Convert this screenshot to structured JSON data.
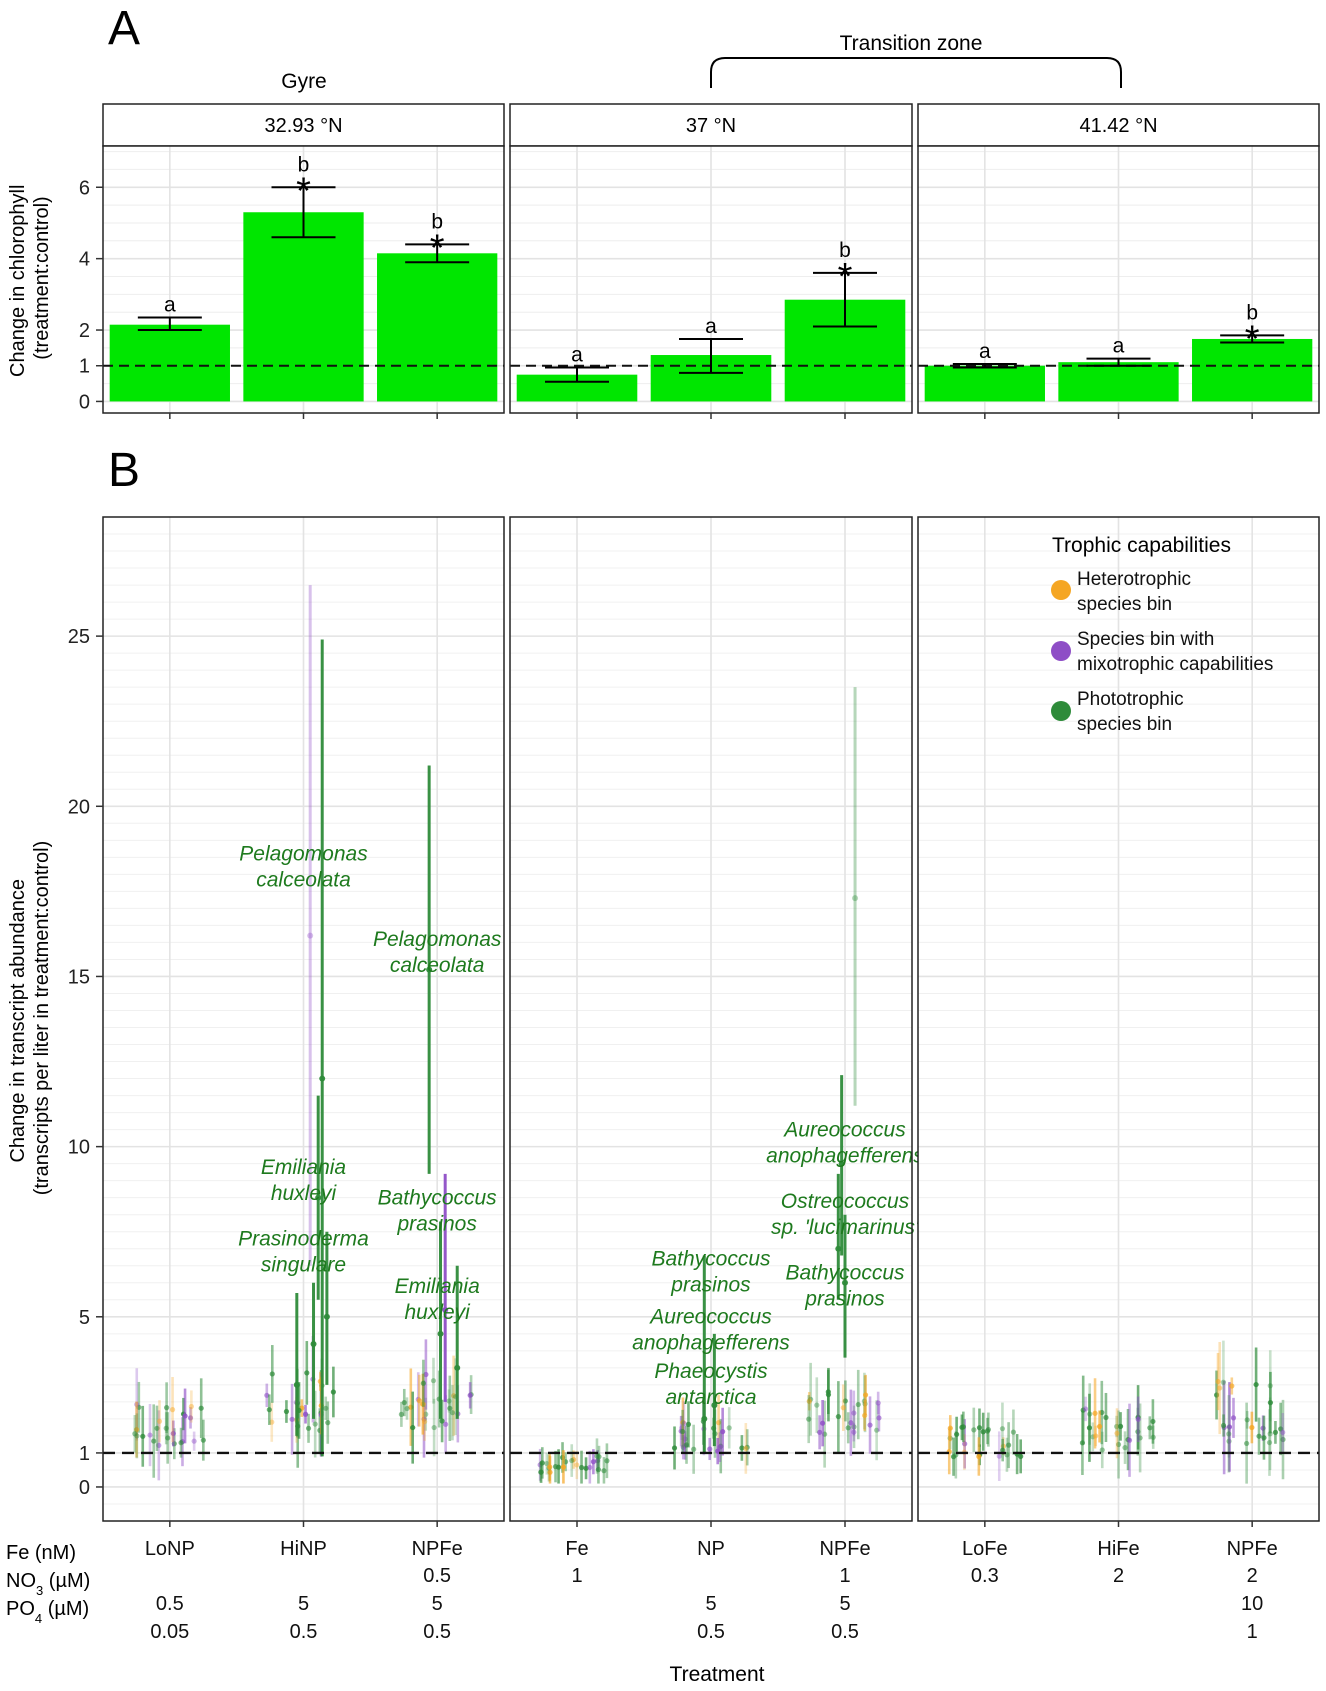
{
  "panel_a_letter": "A",
  "panel_b_letter": "B",
  "gyre_label": "Gyre",
  "transition_label": "Transition zone",
  "x_axis_title": "Treatment",
  "row_labels": {
    "fe": "Fe (nM)",
    "no3": "NO3 (µM)",
    "po4": "PO4 (µM)"
  },
  "legend": {
    "title": "Trophic capabilities",
    "items": [
      {
        "line1": "Heterotrophic",
        "line2": "species bin",
        "color": "#f5a623"
      },
      {
        "line1": "Species bin with",
        "line2": "mixotrophic capabilities",
        "color": "#8e4ec6"
      },
      {
        "line1": "Phototrophic",
        "line2": "species bin",
        "color": "#2e8b3a"
      }
    ]
  },
  "chart_data": [
    {
      "type": "bar",
      "title": "A",
      "ylabel": "Change in chlorophyll (treatment:control)",
      "ylim": [
        -0.1,
        7.1
      ],
      "yticks": [
        0,
        1,
        2,
        4,
        6
      ],
      "reference_line": 1,
      "bar_color": "#00e600",
      "facets": [
        {
          "strip": "32.93 °N",
          "categories": [
            "LoNP",
            "HiNP",
            "NPFe"
          ],
          "values": [
            2.15,
            5.3,
            4.15
          ],
          "err_low": [
            2.0,
            4.6,
            3.9
          ],
          "err_high": [
            2.35,
            6.0,
            4.4
          ],
          "letters": [
            "a",
            "b",
            "b"
          ],
          "significant": [
            false,
            true,
            true
          ]
        },
        {
          "strip": "37 °N",
          "categories": [
            "Fe",
            "NP",
            "NPFe"
          ],
          "values": [
            0.75,
            1.3,
            2.85
          ],
          "err_low": [
            0.55,
            0.8,
            2.1
          ],
          "err_high": [
            0.95,
            1.75,
            3.6
          ],
          "letters": [
            "a",
            "a",
            "b"
          ],
          "significant": [
            false,
            false,
            true
          ]
        },
        {
          "strip": "41.42 °N",
          "categories": [
            "LoFe",
            "HiFe",
            "NPFe"
          ],
          "values": [
            1.0,
            1.1,
            1.75
          ],
          "err_low": [
            0.95,
            1.0,
            1.65
          ],
          "err_high": [
            1.05,
            1.2,
            1.85
          ],
          "letters": [
            "a",
            "a",
            "b"
          ],
          "significant": [
            false,
            false,
            true
          ]
        }
      ]
    },
    {
      "type": "scatter",
      "title": "B",
      "ylabel": "Change in transcript abundance (transcripts per liter in treatment:control)",
      "xlabel": "Treatment",
      "ylim": [
        -1,
        28.5
      ],
      "yticks": [
        0,
        1,
        5,
        10,
        15,
        20,
        25
      ],
      "reference_line": 1,
      "facets": [
        {
          "strip": "32.93 °N",
          "categories": [
            "LoNP",
            "HiNP",
            "NPFe"
          ],
          "treatments": {
            "fe": [
              "",
              "",
              "0.5"
            ],
            "no3": [
              "0.5",
              "5",
              "5"
            ],
            "po4": [
              "0.05",
              "0.5",
              "0.5"
            ]
          },
          "highlights": [
            {
              "group": "HiNP",
              "offset": 0.1,
              "y": 16.2,
              "low": 6.5,
              "high": 26.5,
              "trophic": "mixotrophic"
            },
            {
              "group": "HiNP",
              "offset": 0.28,
              "y": 12.0,
              "low": 0.9,
              "high": 24.9,
              "trophic": "phototrophic"
            },
            {
              "group": "HiNP",
              "offset": 0.22,
              "y": 8.5,
              "low": 5.5,
              "high": 11.5,
              "trophic": "phototrophic"
            },
            {
              "group": "HiNP",
              "offset": 0.15,
              "y": 4.2,
              "low": 2.0,
              "high": 6.0,
              "trophic": "phototrophic"
            },
            {
              "group": "HiNP",
              "offset": 0.35,
              "y": 5.0,
              "low": 3.0,
              "high": 7.5,
              "trophic": "phototrophic"
            },
            {
              "group": "HiNP",
              "offset": -0.1,
              "y": 3.0,
              "low": 1.5,
              "high": 5.7,
              "trophic": "phototrophic"
            },
            {
              "group": "NPFe",
              "offset": -0.12,
              "y": 15.2,
              "low": 9.2,
              "high": 21.2,
              "trophic": "phototrophic"
            },
            {
              "group": "NPFe",
              "offset": 0.12,
              "y": 5.2,
              "low": 2.5,
              "high": 9.2,
              "trophic": "mixotrophic"
            },
            {
              "group": "NPFe",
              "offset": 0.05,
              "y": 4.5,
              "low": 2.0,
              "high": 7.8,
              "trophic": "phototrophic"
            },
            {
              "group": "NPFe",
              "offset": 0.3,
              "y": 3.5,
              "low": 2.0,
              "high": 6.5,
              "trophic": "phototrophic"
            }
          ],
          "species_labels": [
            {
              "line1": "Pelagomonas",
              "line2": "calceolata",
              "group": "HiNP",
              "y_top": 18.4
            },
            {
              "line1": "Pelagomonas",
              "line2": "calceolata",
              "group": "NPFe",
              "y_top": 15.9
            },
            {
              "line1": "Emiliania",
              "line2": "huxleyi",
              "group": "HiNP",
              "y_top": 9.2
            },
            {
              "line1": "Bathycoccus",
              "line2": "prasinos",
              "group": "NPFe",
              "y_top": 8.3
            },
            {
              "line1": "Prasinoderma",
              "line2": "singulare",
              "group": "HiNP",
              "y_top": 7.1
            },
            {
              "line1": "Emiliania",
              "line2": "huxleyi",
              "group": "NPFe",
              "y_top": 5.7
            }
          ]
        },
        {
          "strip": "37 °N",
          "categories": [
            "Fe",
            "NP",
            "NPFe"
          ],
          "treatments": {
            "fe": [
              "1",
              "",
              "1"
            ],
            "no3": [
              "",
              "5",
              "5"
            ],
            "po4": [
              "",
              "0.5",
              "0.5"
            ]
          },
          "highlights": [
            {
              "group": "NP",
              "offset": -0.1,
              "y": 2.0,
              "low": 1.0,
              "high": 6.8,
              "trophic": "phototrophic"
            },
            {
              "group": "NP",
              "offset": 0.05,
              "y": 2.4,
              "low": 1.2,
              "high": 4.5,
              "trophic": "phototrophic"
            },
            {
              "group": "NPFe",
              "offset": -0.1,
              "y": 7.0,
              "low": 5.5,
              "high": 9.2,
              "trophic": "phototrophic"
            },
            {
              "group": "NPFe",
              "offset": -0.05,
              "y": 9.5,
              "low": 6.8,
              "high": 12.1,
              "trophic": "phototrophic"
            },
            {
              "group": "NPFe",
              "offset": 0.0,
              "y": 6.0,
              "low": 3.8,
              "high": 8.0,
              "trophic": "phototrophic"
            },
            {
              "group": "NPFe",
              "offset": 0.15,
              "y": 17.3,
              "low": 11.2,
              "high": 23.5,
              "trophic": "phototrophic",
              "faint": true
            }
          ],
          "species_labels": [
            {
              "line1": "Aureococcus",
              "line2": "anophagefferens",
              "group": "NPFe",
              "y_top": 10.3
            },
            {
              "line1": "Ostreococcus",
              "line2": "sp. 'lucimarinus'",
              "group": "NPFe",
              "y_top": 8.2
            },
            {
              "line1": "Bathycoccus",
              "line2": "prasinos",
              "group": "NP",
              "y_top": 6.5
            },
            {
              "line1": "Bathycoccus",
              "line2": "prasinos",
              "group": "NPFe",
              "y_top": 6.1
            },
            {
              "line1": "Aureococcus",
              "line2": "anophagefferens",
              "group": "NP",
              "y_top": 4.8
            },
            {
              "line1": "Phaeocystis",
              "line2": "antarctica",
              "group": "NP",
              "y_top": 3.2
            }
          ]
        },
        {
          "strip": "41.42 °N",
          "categories": [
            "LoFe",
            "HiFe",
            "NPFe"
          ],
          "treatments": {
            "fe": [
              "0.3",
              "2",
              "2"
            ],
            "no3": [
              "",
              "",
              "10"
            ],
            "po4": [
              "",
              "",
              "1"
            ]
          },
          "highlights": [],
          "species_labels": []
        }
      ]
    }
  ]
}
